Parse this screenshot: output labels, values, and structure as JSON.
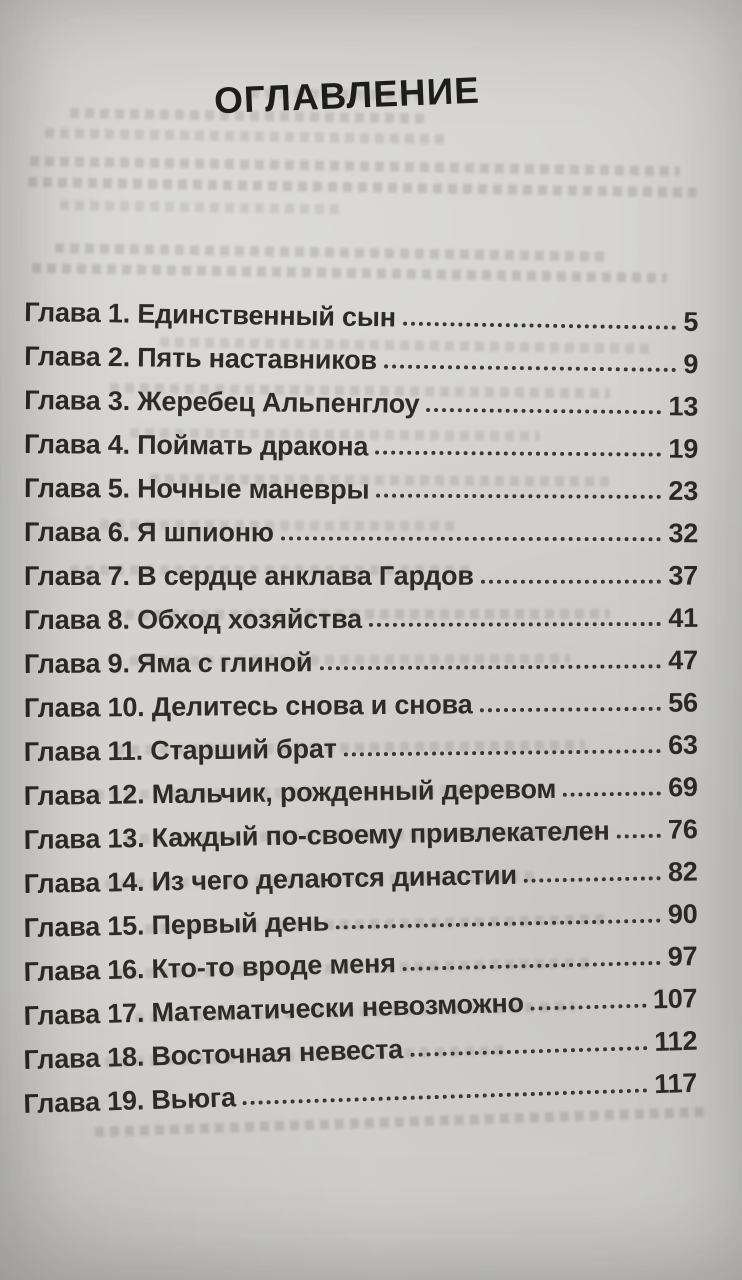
{
  "page_title": "ОГЛАВЛЕНИЕ",
  "toc": {
    "entries": [
      {
        "label": "Глава 1. Единственный сын",
        "page": "5"
      },
      {
        "label": "Глава 2. Пять наставников",
        "page": "9"
      },
      {
        "label": "Глава 3. Жеребец Альпенглоу",
        "page": "13"
      },
      {
        "label": "Глава 4. Поймать дракона",
        "page": "19"
      },
      {
        "label": "Глава 5. Ночные маневры",
        "page": "23"
      },
      {
        "label": "Глава 6. Я шпионю",
        "page": "32"
      },
      {
        "label": "Глава 7. В сердце анклава Гардов",
        "page": "37"
      },
      {
        "label": "Глава 8. Обход хозяйства",
        "page": "41"
      },
      {
        "label": "Глава 9. Яма с глиной",
        "page": "47"
      },
      {
        "label": "Глава 10. Делитесь снова и снова",
        "page": "56"
      },
      {
        "label": "Глава 11. Старший брат",
        "page": "63"
      },
      {
        "label": "Глава 12. Мальчик, рожденный деревом",
        "page": "69"
      },
      {
        "label": "Глава 13. Каждый по-своему привлекателен",
        "page": "76"
      },
      {
        "label": "Глава 14. Из чего делаются династии",
        "page": "82"
      },
      {
        "label": "Глава 15. Первый день",
        "page": "90"
      },
      {
        "label": "Глава 16. Кто-то вроде меня",
        "page": "97"
      },
      {
        "label": "Глава 17. Математически невозможно",
        "page": "107"
      },
      {
        "label": "Глава 18. Восточная невеста",
        "page": "112"
      },
      {
        "label": "Глава 19. Вьюга",
        "page": "117"
      }
    ]
  },
  "colors": {
    "paper": "#d3d2ce",
    "ink": "#2c2b26",
    "title_ink": "#1e1e1a"
  }
}
